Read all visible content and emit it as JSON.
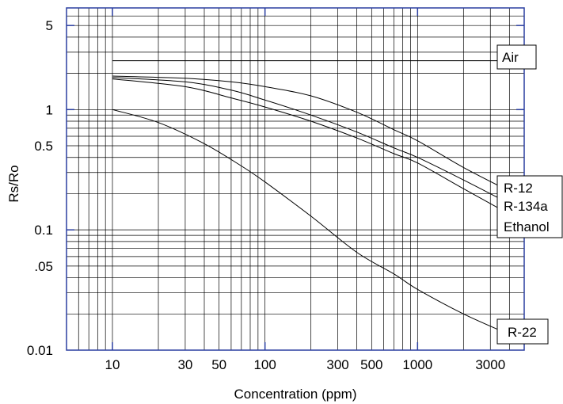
{
  "chart_data": {
    "type": "line",
    "title": "",
    "xlabel": "Concentration (ppm)",
    "ylabel": "Rs/Ro",
    "x_scale": "log",
    "y_scale": "log",
    "xlim": [
      5,
      5000
    ],
    "ylim": [
      0.01,
      7
    ],
    "grid": true,
    "x_ticks": [
      {
        "value": 10,
        "label": "10"
      },
      {
        "value": 30,
        "label": "30"
      },
      {
        "value": 50,
        "label": "50"
      },
      {
        "value": 100,
        "label": "100"
      },
      {
        "value": 300,
        "label": "300"
      },
      {
        "value": 500,
        "label": "500"
      },
      {
        "value": 1000,
        "label": "1000"
      },
      {
        "value": 3000,
        "label": "3000"
      }
    ],
    "y_ticks": [
      {
        "value": 5,
        "label": "5"
      },
      {
        "value": 1,
        "label": "1"
      },
      {
        "value": 0.5,
        "label": "0.5"
      },
      {
        "value": 0.1,
        "label": "0.1"
      },
      {
        "value": 0.05,
        "label": ".05"
      },
      {
        "value": 0.01,
        "label": "0.01"
      }
    ],
    "series": [
      {
        "name": "Air",
        "x": [
          10,
          4000
        ],
        "y": [
          2.55,
          2.55
        ]
      },
      {
        "name": "R-12",
        "x": [
          10,
          30,
          60,
          100,
          200,
          400,
          700,
          1000,
          2000,
          4000
        ],
        "y": [
          1.9,
          1.82,
          1.7,
          1.55,
          1.3,
          0.95,
          0.68,
          0.55,
          0.33,
          0.21
        ]
      },
      {
        "name": "R-134a",
        "x": [
          10,
          30,
          60,
          100,
          200,
          400,
          700,
          1000,
          2000,
          4000
        ],
        "y": [
          1.85,
          1.7,
          1.45,
          1.2,
          0.9,
          0.65,
          0.48,
          0.4,
          0.26,
          0.165
        ]
      },
      {
        "name": "Ethanol",
        "x": [
          10,
          30,
          60,
          100,
          200,
          400,
          700,
          1000,
          2000,
          4000
        ],
        "y": [
          1.8,
          1.55,
          1.25,
          1.05,
          0.8,
          0.58,
          0.43,
          0.36,
          0.22,
          0.135
        ]
      },
      {
        "name": "R-22",
        "x": [
          10,
          20,
          40,
          70,
          100,
          200,
          400,
          700,
          1000,
          2000,
          4000
        ],
        "y": [
          1.0,
          0.78,
          0.52,
          0.34,
          0.25,
          0.13,
          0.065,
          0.043,
          0.032,
          0.02,
          0.0135
        ]
      }
    ],
    "legend": [
      "Air",
      "R-12",
      "R-134a",
      "Ethanol",
      "R-22"
    ]
  }
}
